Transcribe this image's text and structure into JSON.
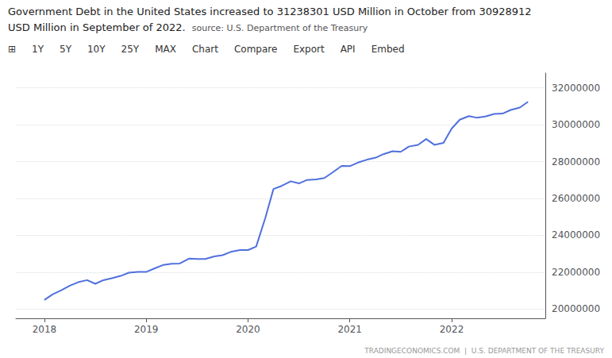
{
  "chart_data": {
    "type": "line",
    "title": "Government Debt in the United States increased to 31238301 USD Million in October from 30928912",
    "subtitle": "USD Million in September of 2022.",
    "source": "source: U.S. Department of the Treasury",
    "toolbar": [
      "⊞",
      "1Y",
      "5Y",
      "10Y",
      "25Y",
      "MAX",
      "Chart",
      "Compare",
      "Export",
      "API",
      "Embed"
    ],
    "footer": "TRADINGECONOMICS.COM  |  U.S. DEPARTMENT OF THE TREASURY",
    "grid": true,
    "xlim": [
      2017.72,
      2022.92
    ],
    "xticks": [
      2018,
      2019,
      2020,
      2021,
      2022
    ],
    "ylim": [
      19500000,
      32800000
    ],
    "yticks": [
      20000000,
      22000000,
      24000000,
      26000000,
      28000000,
      30000000,
      32000000
    ],
    "x": [
      2018.0,
      2018.08,
      2018.17,
      2018.25,
      2018.33,
      2018.42,
      2018.5,
      2018.58,
      2018.67,
      2018.75,
      2018.83,
      2018.92,
      2019.0,
      2019.08,
      2019.17,
      2019.25,
      2019.33,
      2019.42,
      2019.5,
      2019.58,
      2019.67,
      2019.75,
      2019.83,
      2019.92,
      2020.0,
      2020.08,
      2020.17,
      2020.25,
      2020.33,
      2020.42,
      2020.5,
      2020.58,
      2020.67,
      2020.75,
      2020.83,
      2020.92,
      2021.0,
      2021.08,
      2021.17,
      2021.25,
      2021.33,
      2021.42,
      2021.5,
      2021.58,
      2021.67,
      2021.75,
      2021.83,
      2021.92,
      2022.0,
      2022.08,
      2022.17,
      2022.25,
      2022.33,
      2022.42,
      2022.5,
      2022.58,
      2022.67,
      2022.75
    ],
    "values": [
      20492746,
      20799101,
      21031067,
      21266740,
      21456441,
      21571357,
      21371669,
      21568565,
      21682367,
      21799322,
      21974830,
      22021484,
      22012840,
      22201254,
      22398102,
      22458573,
      22473208,
      22736453,
      22719401,
      22721253,
      22855253,
      22920745,
      23101564,
      23201367,
      23202618,
      23387671,
      24947213,
      26510000,
      26679000,
      26930000,
      26814000,
      27004000,
      27031000,
      27109000,
      27407000,
      27765000,
      27751000,
      27945000,
      28105000,
      28201000,
      28402000,
      28560000,
      28529000,
      28813000,
      28906000,
      29220000,
      28908000,
      29016000,
      29789000,
      30271000,
      30466000,
      30374000,
      30440000,
      30581000,
      30601000,
      30800000,
      30928912,
      31238301
    ]
  }
}
